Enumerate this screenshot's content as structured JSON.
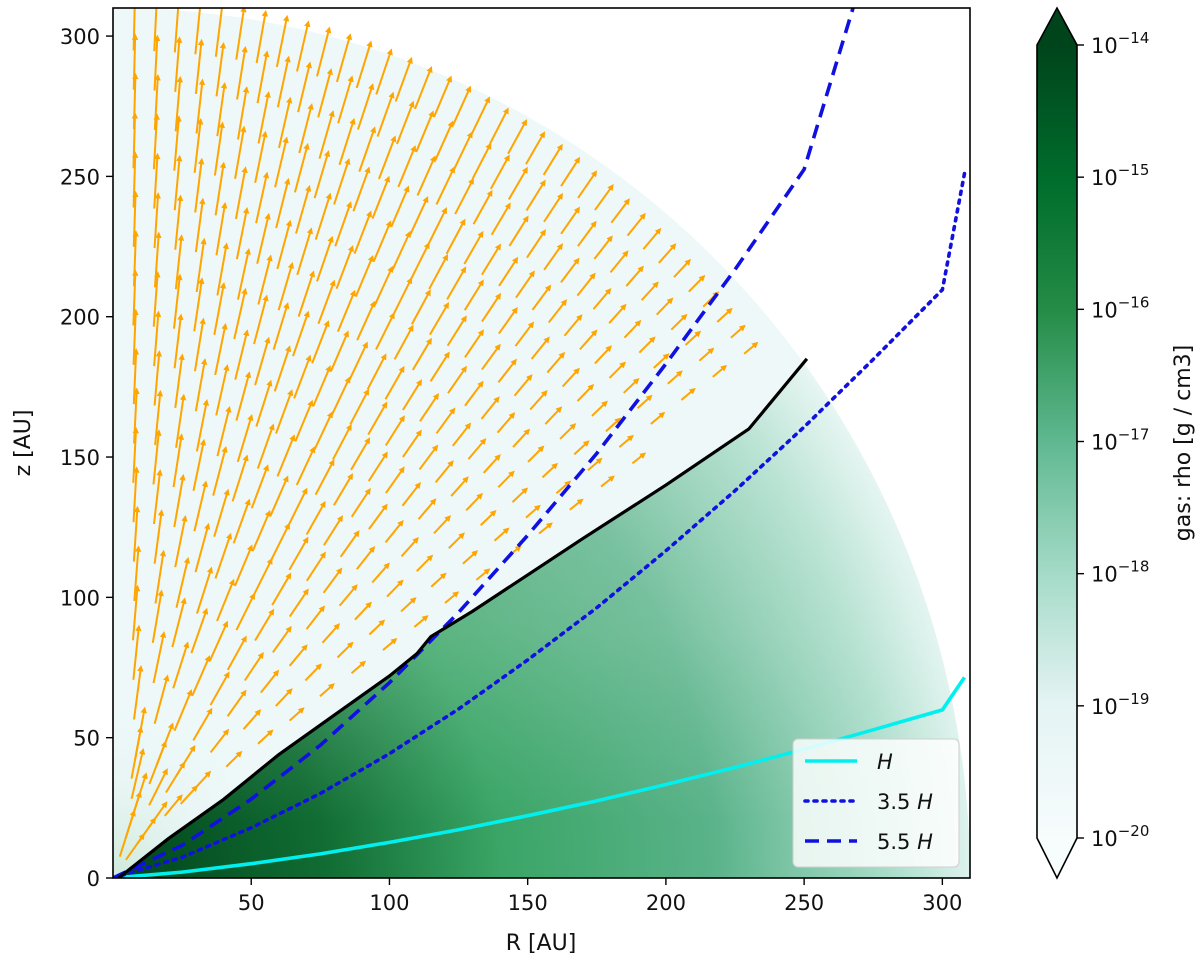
{
  "chart_data": {
    "type": "heatmap",
    "xlabel": "R  [AU]",
    "ylabel": "z  [AU]",
    "xlim": [
      0,
      310
    ],
    "ylim": [
      0,
      310
    ],
    "xticks": [
      50,
      100,
      150,
      200,
      250,
      300
    ],
    "yticks": [
      0,
      50,
      100,
      150,
      200,
      250,
      300
    ],
    "grid": false,
    "colormap": "Greens",
    "colorbar": {
      "label": "gas: rho [g / cm3]",
      "scale": "log",
      "range": [
        1e-20,
        1e-14
      ],
      "ticks": [
        {
          "exp": -14,
          "base": "10",
          "sup": "−14"
        },
        {
          "exp": -15,
          "base": "10",
          "sup": "−15"
        },
        {
          "exp": -16,
          "base": "10",
          "sup": "−16"
        },
        {
          "exp": -17,
          "base": "10",
          "sup": "−17"
        },
        {
          "exp": -18,
          "base": "10",
          "sup": "−18"
        },
        {
          "exp": -19,
          "base": "10",
          "sup": "−19"
        },
        {
          "exp": -20,
          "base": "10",
          "sup": "−20"
        }
      ],
      "extend": "both"
    },
    "domain": {
      "shape": "quarter-circle",
      "outer_radius": 310
    },
    "disk_surface": {
      "name": "",
      "color": "#000000",
      "x": [
        2,
        20,
        40,
        60,
        80,
        100,
        110,
        115,
        130,
        150,
        170,
        200,
        230,
        251
      ],
      "y": [
        0,
        14,
        28,
        44,
        58,
        72,
        80,
        86,
        95,
        108,
        121,
        140,
        160,
        185
      ]
    },
    "series": [
      {
        "name": "H",
        "style": "solid",
        "color": "#00f0f0",
        "x": [
          0,
          25,
          50,
          75,
          100,
          125,
          150,
          175,
          200,
          225,
          250,
          275,
          300,
          308
        ],
        "y": [
          0,
          2.1,
          5.1,
          8.6,
          12.7,
          17.2,
          22.2,
          27.5,
          33.3,
          39.4,
          45.9,
          52.8,
          59.9,
          71.5
        ]
      },
      {
        "name": "3.5 H",
        "style": "dotted",
        "color": "#1010e0",
        "x": [
          0,
          25,
          50,
          75,
          100,
          125,
          150,
          175,
          200,
          225,
          250,
          275,
          300,
          308
        ],
        "y": [
          0,
          7.4,
          17.9,
          30.1,
          44.3,
          60.2,
          77.7,
          96.3,
          116.6,
          138.0,
          160.7,
          184.8,
          209.6,
          251
        ]
      },
      {
        "name": "5.5 H",
        "style": "dashed",
        "color": "#1010e0",
        "x": [
          0,
          25,
          50,
          75,
          100,
          125,
          150,
          175,
          200,
          225,
          250,
          268
        ],
        "y": [
          0,
          11.6,
          28.1,
          47.3,
          69.6,
          94.6,
          122.1,
          151.3,
          183.2,
          216.8,
          252.5,
          311
        ]
      }
    ],
    "velocity_field": {
      "color": "#ffa500",
      "direction": "outflow above disk surface"
    },
    "legend": {
      "position": "bottom-right",
      "entries": [
        {
          "base": "",
          "italic": "H",
          "style": "solid",
          "color": "#00f0f0"
        },
        {
          "base": "3.5 ",
          "italic": "H",
          "style": "dotted",
          "color": "#1010e0"
        },
        {
          "base": "5.5 ",
          "italic": "H",
          "style": "dashed",
          "color": "#1010e0"
        }
      ]
    }
  }
}
